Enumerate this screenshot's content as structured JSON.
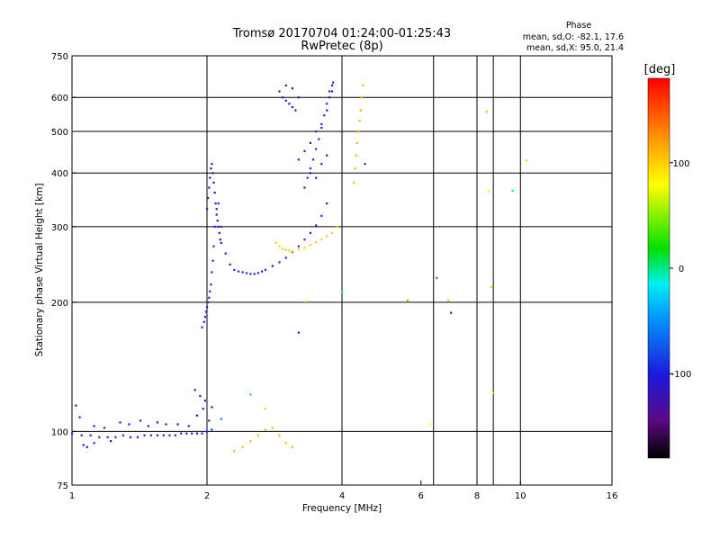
{
  "chart_data": {
    "type": "scatter",
    "title": "Tromsø 20170704 01:24:00-01:25:43",
    "subtitle": "RwPretec (8p)",
    "xlabel": "Frequency [MHz]",
    "ylabel": "Stationary phase Virtual Height [km]",
    "x_scale": "log",
    "y_scale": "log",
    "xlim": [
      1,
      16
    ],
    "ylim": [
      75,
      750
    ],
    "x_ticks": [
      1,
      2,
      4,
      6,
      8,
      10,
      16
    ],
    "y_ticks": [
      75,
      100,
      200,
      300,
      400,
      500,
      600,
      750
    ],
    "x_grid": [
      2,
      4,
      6.4,
      8,
      8.7,
      10
    ],
    "y_grid": [
      100,
      200,
      300,
      400,
      500,
      600
    ],
    "grid": true,
    "stats": {
      "heading": "Phase",
      "line_o": "mean, sd,O: -82.1, 17.6",
      "line_x": "mean, sd,X:  95.0, 21.4"
    },
    "colorbar": {
      "label": "[deg]",
      "ticks": [
        100,
        0,
        -100
      ],
      "range": [
        -180,
        180
      ],
      "placement": "right"
    },
    "series": [
      {
        "note": "E-layer o",
        "x": [
          1.0,
          1.05,
          1.1,
          1.15,
          1.2,
          1.25,
          1.3,
          1.35,
          1.4,
          1.45,
          1.5,
          1.55,
          1.6,
          1.65,
          1.7,
          1.75,
          1.8,
          1.85,
          1.9,
          1.95,
          2.0,
          2.05
        ],
        "y": [
          99,
          98,
          98,
          97,
          97,
          97,
          98,
          97,
          97,
          98,
          98,
          98,
          98,
          98,
          98,
          99,
          99,
          99,
          99,
          99,
          100,
          101
        ],
        "phase": -95
      },
      {
        "note": "E-layer scatter",
        "x": [
          1.02,
          1.04,
          1.06,
          1.12,
          1.18,
          1.22,
          1.28,
          1.34,
          1.42,
          1.48,
          1.55,
          1.62,
          1.72,
          1.82,
          1.9,
          1.96,
          2.02,
          2.05,
          1.98,
          1.93,
          1.88,
          1.08,
          1.12
        ],
        "y": [
          115,
          108,
          93,
          103,
          102,
          95,
          105,
          104,
          106,
          103,
          105,
          104,
          104,
          103,
          109,
          113,
          106,
          114,
          118,
          121,
          125,
          92,
          94
        ],
        "phase": -100
      },
      {
        "note": "low-F o trace",
        "x": [
          1.95,
          1.97,
          1.98,
          1.99,
          2.0,
          2.01,
          2.02,
          2.03,
          2.04,
          2.05,
          2.06,
          2.07,
          2.08,
          2.1,
          2.12,
          2.15,
          2.2,
          2.25,
          2.3,
          2.35,
          2.4,
          2.45,
          2.5,
          2.55,
          2.6,
          2.65,
          2.7,
          2.8,
          2.9,
          3.0,
          3.1,
          3.2,
          3.3,
          3.4,
          3.5,
          3.6,
          3.7
        ],
        "y": [
          175,
          180,
          185,
          190,
          195,
          200,
          205,
          212,
          220,
          235,
          250,
          270,
          300,
          330,
          340,
          300,
          260,
          245,
          238,
          236,
          235,
          234,
          233,
          233,
          234,
          236,
          238,
          243,
          248,
          254,
          262,
          270,
          280,
          290,
          302,
          318,
          340
        ],
        "phase": -95
      },
      {
        "note": "cusp column",
        "x": [
          2.0,
          2.01,
          2.02,
          2.03,
          2.04,
          2.05,
          2.06,
          2.07,
          2.08,
          2.09,
          2.1,
          2.11,
          2.12,
          2.13,
          2.14,
          2.15
        ],
        "y": [
          330,
          350,
          370,
          390,
          410,
          420,
          400,
          380,
          360,
          340,
          320,
          310,
          300,
          290,
          280,
          275
        ],
        "phase": -110
      },
      {
        "note": "F2 o trace",
        "x": [
          3.3,
          3.35,
          3.4,
          3.45,
          3.5,
          3.55,
          3.6,
          3.65,
          3.7,
          3.75,
          3.8,
          3.82
        ],
        "y": [
          370,
          390,
          410,
          430,
          455,
          480,
          510,
          545,
          580,
          620,
          640,
          650
        ],
        "phase": -95
      },
      {
        "note": "F2 spread",
        "x": [
          3.2,
          3.3,
          3.4,
          3.5,
          3.6,
          3.7,
          3.75,
          3.8,
          3.4,
          3.5,
          3.6,
          3.7
        ],
        "y": [
          430,
          450,
          470,
          500,
          520,
          560,
          600,
          620,
          400,
          390,
          420,
          440
        ],
        "phase": -100
      },
      {
        "note": "top patch",
        "x": [
          2.9,
          2.95,
          3.0,
          3.05,
          3.1,
          3.15,
          3.2,
          3.0,
          3.1
        ],
        "y": [
          620,
          600,
          590,
          580,
          570,
          560,
          600,
          640,
          630
        ],
        "phase": -130
      },
      {
        "note": "x-trace F1",
        "x": [
          2.85,
          2.9,
          2.95,
          3.0,
          3.05,
          3.1,
          3.2,
          3.3,
          3.4,
          3.5,
          3.6,
          3.7,
          3.8,
          3.9
        ],
        "y": [
          275,
          270,
          266,
          265,
          264,
          263,
          266,
          268,
          272,
          276,
          280,
          285,
          290,
          300
        ],
        "phase": 100
      },
      {
        "note": "x-trace F2",
        "x": [
          4.25,
          4.28,
          4.3,
          4.32,
          4.35,
          4.38,
          4.4,
          4.42,
          4.45
        ],
        "y": [
          380,
          410,
          440,
          470,
          500,
          530,
          560,
          600,
          640
        ],
        "phase": 110
      },
      {
        "note": "x E-layer",
        "x": [
          2.3,
          2.4,
          2.5,
          2.6,
          2.7,
          2.8,
          2.9,
          3.0,
          3.1
        ],
        "y": [
          90,
          92,
          95,
          98,
          101,
          102,
          98,
          94,
          92
        ],
        "phase": 110
      },
      {
        "note": "scattered",
        "x": [
          2.15,
          2.5,
          2.7,
          3.2,
          3.3,
          4.0,
          4.5,
          5.6,
          6.3,
          6.5,
          6.9,
          7.0,
          8.4,
          8.5,
          8.6,
          8.7,
          9.6,
          10.3
        ],
        "y": [
          107,
          122,
          113,
          170,
          200,
          211,
          420,
          202,
          104,
          228,
          202,
          189,
          556,
          362,
          217,
          123,
          364,
          428
        ],
        "phase": [
          -60,
          -30,
          60,
          -100,
          40,
          -20,
          -100,
          40,
          80,
          -60,
          60,
          -130,
          110,
          70,
          60,
          100,
          -20,
          60
        ]
      }
    ]
  }
}
